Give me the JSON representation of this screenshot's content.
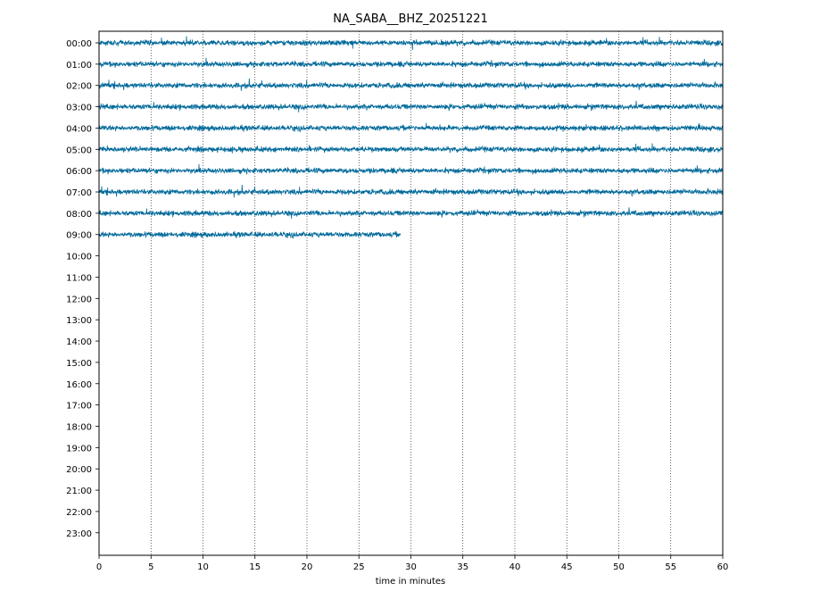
{
  "chart_data": {
    "type": "line",
    "title": "NA_SABA__BHZ_20251221",
    "xlabel": "time in minutes",
    "ylabel": "",
    "xlim": [
      0,
      60
    ],
    "x_ticks": [
      0,
      5,
      10,
      15,
      20,
      25,
      30,
      35,
      40,
      45,
      50,
      55,
      60
    ],
    "y_tick_labels": [
      "00:00",
      "01:00",
      "02:00",
      "03:00",
      "04:00",
      "05:00",
      "06:00",
      "07:00",
      "08:00",
      "09:00",
      "10:00",
      "11:00",
      "12:00",
      "13:00",
      "14:00",
      "15:00",
      "16:00",
      "17:00",
      "18:00",
      "19:00",
      "20:00",
      "21:00",
      "22:00",
      "23:00"
    ],
    "grid": "vertical dotted lines at each x tick",
    "trace_color": "#00699a",
    "traces": [
      {
        "hour": "00:00",
        "start_min": 0,
        "end_min": 60
      },
      {
        "hour": "01:00",
        "start_min": 0,
        "end_min": 60
      },
      {
        "hour": "02:00",
        "start_min": 0,
        "end_min": 60
      },
      {
        "hour": "03:00",
        "start_min": 0,
        "end_min": 60
      },
      {
        "hour": "04:00",
        "start_min": 0,
        "end_min": 60
      },
      {
        "hour": "05:00",
        "start_min": 0,
        "end_min": 60
      },
      {
        "hour": "06:00",
        "start_min": 0,
        "end_min": 60
      },
      {
        "hour": "07:00",
        "start_min": 0,
        "end_min": 60
      },
      {
        "hour": "08:00",
        "start_min": 0,
        "end_min": 60
      },
      {
        "hour": "09:00",
        "start_min": 0,
        "end_min": 29
      }
    ]
  }
}
